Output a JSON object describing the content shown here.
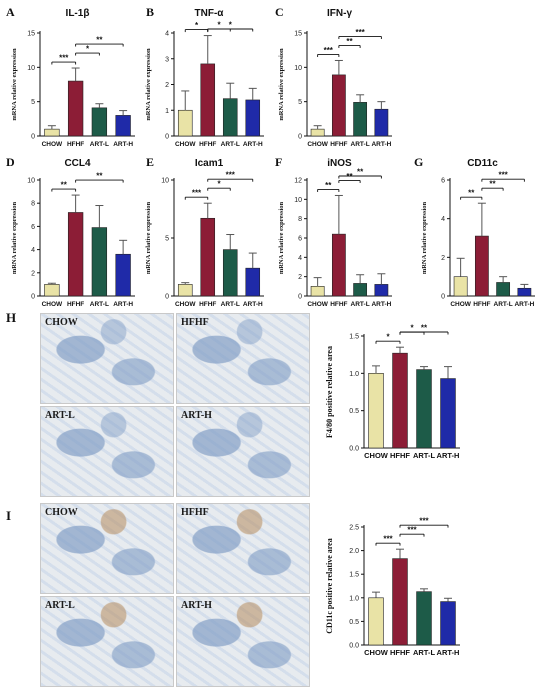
{
  "colors": {
    "CHOW": "#e9e3a6",
    "HFHF": "#8c1d36",
    "ART-L": "#1d5b48",
    "ART-H": "#1f2aa8",
    "tissue_light": "#e7ebef",
    "tissue_blue": "#7f9cc4",
    "tissue_brown": "#b58a5a"
  },
  "histology": {
    "H": {
      "letter": "H",
      "tiles": [
        "CHOW",
        "HFHF",
        "ART-L",
        "ART-H"
      ]
    },
    "I": {
      "letter": "I",
      "tiles": [
        "CHOW",
        "HFHF",
        "ART-L",
        "ART-H"
      ]
    }
  },
  "chart_data": [
    {
      "type": "bar",
      "letter": "A",
      "title": "IL-1β",
      "categories": [
        "CHOW",
        "HFHF",
        "ART-L",
        "ART-H"
      ],
      "values": [
        1.0,
        8.0,
        4.1,
        3.0
      ],
      "errors": [
        0.5,
        1.9,
        0.6,
        0.7
      ],
      "ylabel": "mRNA relative expression",
      "ylim": [
        0,
        15
      ],
      "yticks": [
        "0",
        "5",
        "10",
        "15"
      ],
      "signif": [
        {
          "from": 0,
          "to": 1,
          "label": "***"
        },
        {
          "from": 1,
          "to": 2,
          "label": "*"
        },
        {
          "from": 1,
          "to": 3,
          "label": "**"
        }
      ]
    },
    {
      "type": "bar",
      "letter": "B",
      "title": "TNF-α",
      "categories": [
        "CHOW",
        "HFHF",
        "ART-L",
        "ART-H"
      ],
      "values": [
        1.0,
        2.8,
        1.45,
        1.4
      ],
      "errors": [
        0.75,
        1.1,
        0.6,
        0.45
      ],
      "ylabel": "mRNA relative expression",
      "ylim": [
        0,
        4
      ],
      "yticks": [
        "0",
        "1",
        "2",
        "3",
        "4"
      ],
      "signif": [
        {
          "from": 0,
          "to": 1,
          "label": "*"
        },
        {
          "from": 1,
          "to": 2,
          "label": "*"
        },
        {
          "from": 1,
          "to": 3,
          "label": "*"
        }
      ]
    },
    {
      "type": "bar",
      "letter": "C",
      "title": "IFN-γ",
      "categories": [
        "CHOW",
        "HFHF",
        "ART-L",
        "ART-H"
      ],
      "values": [
        1.0,
        8.9,
        4.9,
        3.9
      ],
      "errors": [
        0.5,
        2.1,
        1.1,
        1.1
      ],
      "ylabel": "mRNA relative expression",
      "ylim": [
        0,
        15
      ],
      "yticks": [
        "0",
        "5",
        "10",
        "15"
      ],
      "signif": [
        {
          "from": 0,
          "to": 1,
          "label": "***"
        },
        {
          "from": 1,
          "to": 2,
          "label": "**"
        },
        {
          "from": 1,
          "to": 3,
          "label": "***"
        }
      ]
    },
    {
      "type": "bar",
      "letter": "D",
      "title": "CCL4",
      "categories": [
        "CHOW",
        "HFHF",
        "ART-L",
        "ART-H"
      ],
      "values": [
        1.0,
        7.2,
        5.9,
        3.6
      ],
      "errors": [
        0.1,
        1.5,
        1.9,
        1.2
      ],
      "ylabel": "mRNA relative expression",
      "ylim": [
        0,
        10
      ],
      "yticks": [
        "0",
        "2",
        "4",
        "6",
        "8",
        "10"
      ],
      "signif": [
        {
          "from": 0,
          "to": 1,
          "label": "**"
        },
        {
          "from": 1,
          "to": 3,
          "label": "**"
        }
      ]
    },
    {
      "type": "bar",
      "letter": "E",
      "title": "Icam1",
      "categories": [
        "CHOW",
        "HFHF",
        "ART-L",
        "ART-H"
      ],
      "values": [
        1.0,
        6.7,
        4.0,
        2.4
      ],
      "errors": [
        0.15,
        1.3,
        1.3,
        1.3
      ],
      "ylabel": "mRNA relative expression",
      "ylim": [
        0,
        10
      ],
      "yticks": [
        "0",
        "5",
        "10"
      ],
      "signif": [
        {
          "from": 0,
          "to": 1,
          "label": "***"
        },
        {
          "from": 1,
          "to": 2,
          "label": "*"
        },
        {
          "from": 1,
          "to": 3,
          "label": "***"
        }
      ]
    },
    {
      "type": "bar",
      "letter": "F",
      "title": "iNOS",
      "categories": [
        "CHOW",
        "HFHF",
        "ART-L",
        "ART-H"
      ],
      "values": [
        1.0,
        6.4,
        1.3,
        1.2
      ],
      "errors": [
        0.9,
        4.0,
        0.9,
        1.1
      ],
      "ylabel": "mRNA relative expression",
      "ylim": [
        0,
        12
      ],
      "yticks": [
        "0",
        "2",
        "4",
        "6",
        "8",
        "10",
        "12"
      ],
      "signif": [
        {
          "from": 0,
          "to": 1,
          "label": "**"
        },
        {
          "from": 1,
          "to": 2,
          "label": "**"
        },
        {
          "from": 1,
          "to": 3,
          "label": "**"
        }
      ]
    },
    {
      "type": "bar",
      "letter": "G",
      "title": "CD11c",
      "categories": [
        "CHOW",
        "HFHF",
        "ART-L",
        "ART-H"
      ],
      "values": [
        1.0,
        3.1,
        0.7,
        0.4
      ],
      "errors": [
        0.95,
        1.7,
        0.3,
        0.2
      ],
      "ylabel": "mRNA relative expression",
      "ylim": [
        0,
        6
      ],
      "yticks": [
        "0",
        "2",
        "4",
        "6"
      ],
      "signif": [
        {
          "from": 0,
          "to": 1,
          "label": "**"
        },
        {
          "from": 1,
          "to": 2,
          "label": "**"
        },
        {
          "from": 1,
          "to": 3,
          "label": "***"
        }
      ]
    },
    {
      "type": "bar",
      "letter": "",
      "title": "",
      "categories": [
        "CHOW",
        "HFHF",
        "ART-L",
        "ART-H"
      ],
      "values": [
        1.0,
        1.27,
        1.05,
        0.93
      ],
      "errors": [
        0.1,
        0.08,
        0.04,
        0.16
      ],
      "ylabel": "F4/80 positive relative area",
      "ylim": [
        0,
        1.5
      ],
      "yticks": [
        "0.0",
        "0.5",
        "1.0",
        "1.5"
      ],
      "signif": [
        {
          "from": 0,
          "to": 1,
          "label": "*"
        },
        {
          "from": 1,
          "to": 2,
          "label": "*"
        },
        {
          "from": 1,
          "to": 3,
          "label": "**"
        }
      ]
    },
    {
      "type": "bar",
      "letter": "",
      "title": "",
      "categories": [
        "CHOW",
        "HFHF",
        "ART-L",
        "ART-H"
      ],
      "values": [
        1.0,
        1.83,
        1.13,
        0.92
      ],
      "errors": [
        0.12,
        0.2,
        0.06,
        0.07
      ],
      "ylabel": "CD11c positive relative area",
      "ylim": [
        0,
        2.5
      ],
      "yticks": [
        "0.0",
        "0.5",
        "1.0",
        "1.5",
        "2.0",
        "2.5"
      ],
      "signif": [
        {
          "from": 0,
          "to": 1,
          "label": "***"
        },
        {
          "from": 1,
          "to": 2,
          "label": "***"
        },
        {
          "from": 1,
          "to": 3,
          "label": "***"
        }
      ]
    }
  ]
}
